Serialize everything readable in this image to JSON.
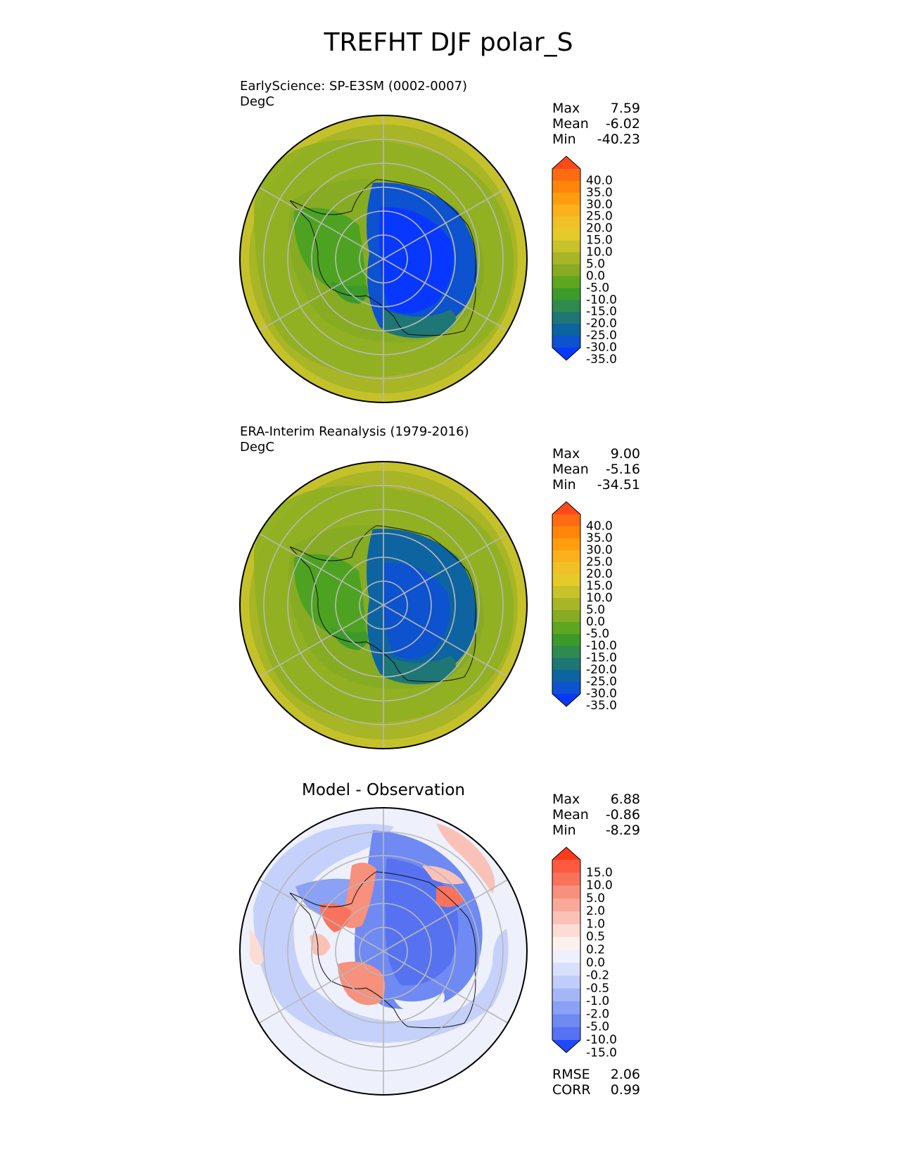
{
  "title": "TREFHT DJF polar_S",
  "panels": [
    {
      "id": "test",
      "label_line1": "EarlyScience: SP-E3SM (0002-0007)",
      "label_line2": "DegC",
      "stats": [
        {
          "name": "Max",
          "value": "7.59"
        },
        {
          "name": "Mean",
          "value": "-6.02"
        },
        {
          "name": "Min",
          "value": "-40.23"
        }
      ],
      "colorbar": {
        "ticks": [
          "40.0",
          "35.0",
          "30.0",
          "25.0",
          "20.0",
          "15.0",
          "10.0",
          "5.0",
          "0.0",
          "-5.0",
          "-10.0",
          "-15.0",
          "-20.0",
          "-25.0",
          "-30.0",
          "-35.0"
        ],
        "colors": [
          "#ff4a1a",
          "#ff6a12",
          "#ff860a",
          "#ff9d0f",
          "#fbb11b",
          "#efc126",
          "#e5cb2a",
          "#c8c22b",
          "#a8b526",
          "#87ab22",
          "#5fa620",
          "#3c9a2a",
          "#2f8a50",
          "#1e7675",
          "#0e64a0",
          "#0d52cf",
          "#0838ff"
        ]
      }
    },
    {
      "id": "reference",
      "label_line1": "ERA-Interim Reanalysis (1979-2016)",
      "label_line2": "DegC",
      "stats": [
        {
          "name": "Max",
          "value": "9.00"
        },
        {
          "name": "Mean",
          "value": "-5.16"
        },
        {
          "name": "Min",
          "value": "-34.51"
        }
      ],
      "colorbar": {
        "ticks": [
          "40.0",
          "35.0",
          "30.0",
          "25.0",
          "20.0",
          "15.0",
          "10.0",
          "5.0",
          "0.0",
          "-5.0",
          "-10.0",
          "-15.0",
          "-20.0",
          "-25.0",
          "-30.0",
          "-35.0"
        ],
        "colors": [
          "#ff4a1a",
          "#ff6a12",
          "#ff860a",
          "#ff9d0f",
          "#fbb11b",
          "#efc126",
          "#e5cb2a",
          "#c8c22b",
          "#a8b526",
          "#87ab22",
          "#5fa620",
          "#3c9a2a",
          "#2f8a50",
          "#1e7675",
          "#0e64a0",
          "#0d52cf",
          "#0838ff"
        ]
      }
    },
    {
      "id": "diff",
      "center_title": "Model - Observation",
      "stats": [
        {
          "name": "Max",
          "value": "6.88"
        },
        {
          "name": "Mean",
          "value": "-0.86"
        },
        {
          "name": "Min",
          "value": "-8.29"
        }
      ],
      "metrics": [
        {
          "name": "RMSE",
          "value": "2.06"
        },
        {
          "name": "CORR",
          "value": "0.99"
        }
      ],
      "colorbar": {
        "ticks": [
          "15.0",
          "10.0",
          "5.0",
          "2.0",
          "1.0",
          "0.5",
          "0.2",
          "0.0",
          "-0.2",
          "-0.5",
          "-1.0",
          "-2.0",
          "-5.0",
          "-10.0",
          "-15.0"
        ],
        "colors": [
          "#ff3a1a",
          "#ff5a3f",
          "#f9735c",
          "#f7907c",
          "#f8a99a",
          "#fac2b7",
          "#fddcd6",
          "#fdf1ee",
          "#eef0fc",
          "#d9e0fb",
          "#c0cdf9",
          "#a3b7f8",
          "#8aa1f6",
          "#6f8af3",
          "#5672f1",
          "#1f48ff"
        ]
      }
    }
  ]
}
